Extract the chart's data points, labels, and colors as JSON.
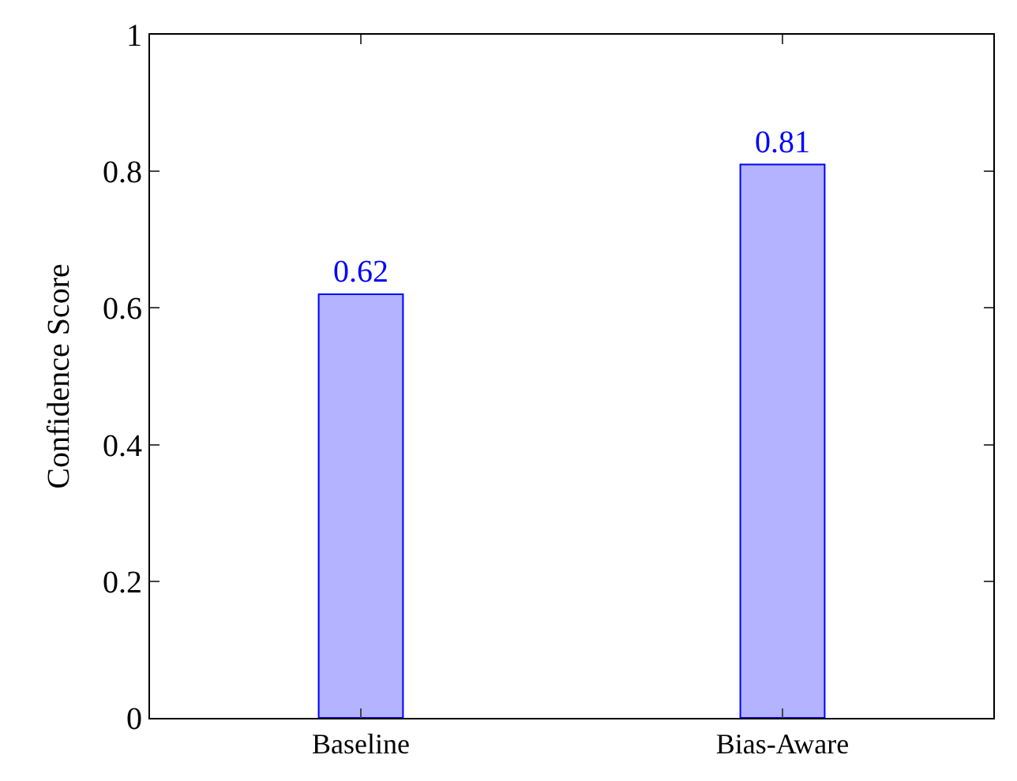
{
  "chart_data": {
    "type": "bar",
    "ylabel": "Confidence Score",
    "categories": [
      "Baseline",
      "Bias-Aware"
    ],
    "series": [
      {
        "color": "#b3b3ff",
        "values": [
          0.62,
          0.81
        ]
      }
    ],
    "ylim": [
      0,
      1
    ],
    "yticks": [
      0,
      0.2,
      0.4,
      0.6,
      0.8,
      1
    ],
    "data_labels": true
  }
}
